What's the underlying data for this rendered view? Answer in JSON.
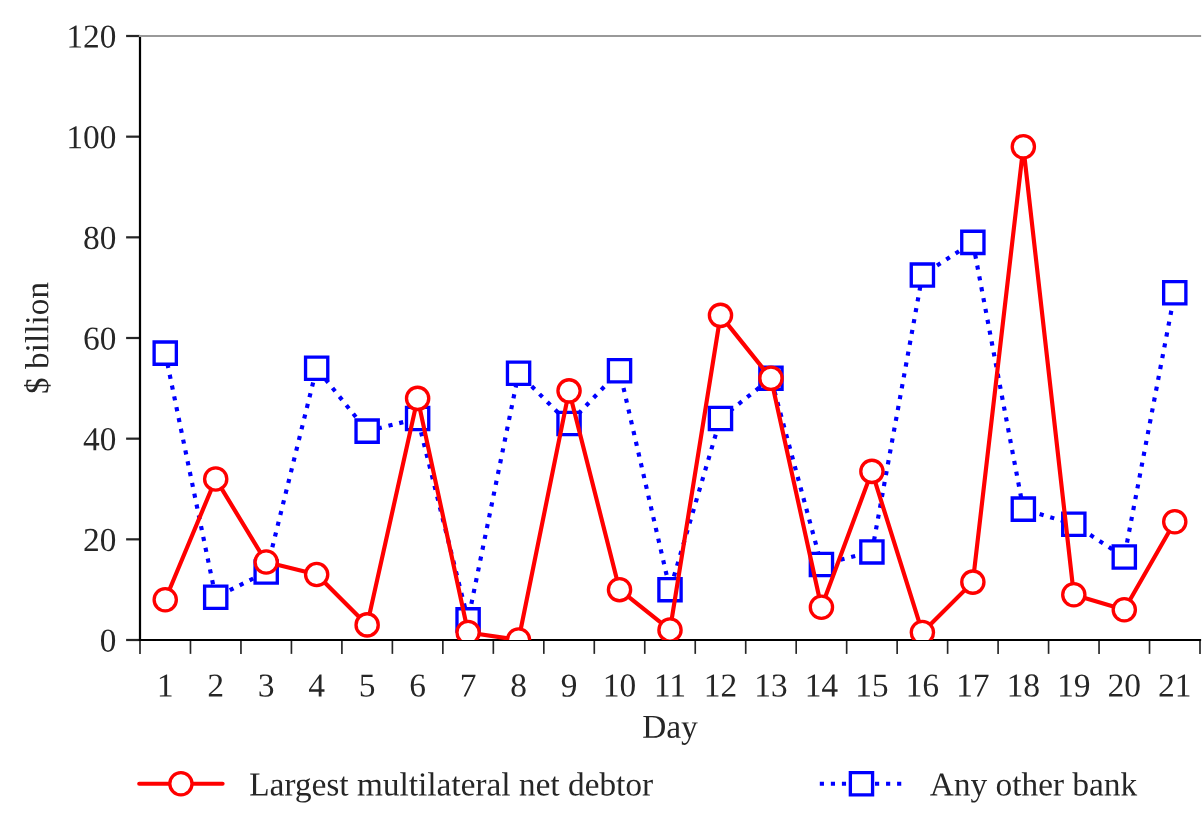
{
  "chart_data": {
    "type": "line",
    "xlabel": "Day",
    "ylabel": "$ billion",
    "categories": [
      "1",
      "2",
      "3",
      "4",
      "5",
      "6",
      "7",
      "8",
      "9",
      "10",
      "11",
      "12",
      "13",
      "14",
      "15",
      "16",
      "17",
      "18",
      "19",
      "20",
      "21"
    ],
    "ylim": [
      0,
      120
    ],
    "yticks": [
      0,
      20,
      40,
      60,
      80,
      100,
      120
    ],
    "grid": false,
    "legend": "bottom",
    "series": [
      {
        "name": "Largest multilateral net debtor",
        "color": "#ff0000",
        "marker": "circle",
        "line_style": "solid",
        "values": [
          8,
          32,
          15.5,
          13,
          3,
          48,
          1.5,
          0,
          49.5,
          10,
          2,
          64.5,
          52,
          6.5,
          33.5,
          1.5,
          11.5,
          98,
          9,
          6,
          23.5
        ]
      },
      {
        "name": "Any other bank",
        "color": "#0000ff",
        "marker": "square",
        "line_style": "dotted",
        "values": [
          57,
          8.5,
          13.5,
          54,
          41.5,
          44,
          4,
          53,
          43,
          53.5,
          10,
          44,
          52,
          15,
          17.5,
          72.5,
          79,
          26,
          23,
          16.5,
          69
        ]
      }
    ]
  }
}
